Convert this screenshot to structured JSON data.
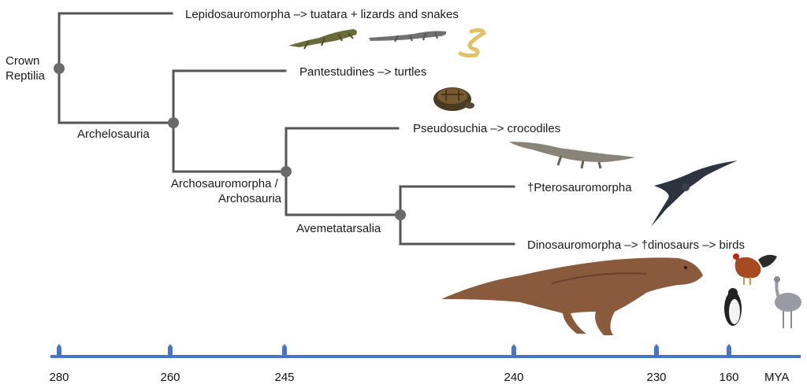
{
  "colors": {
    "branch": "#555555",
    "node": "#6a6a6a",
    "axis": "#4a74c4",
    "text": "#1a1a1a"
  },
  "nodes": {
    "crown_reptilia": "Crown\nReptilia",
    "archelosauria": "Archelosauria",
    "archosauromorpha": "Archosauromorpha /\nArchosauria",
    "avemetatarsalia": "Avemetatarsalia"
  },
  "tips": {
    "lepidosauromorpha": "Lepidosauromorpha –> tuatara + lizards and snakes",
    "pantestudines": "Pantestudines –> turtles",
    "pseudosuchia": "Pseudosuchia –> crocodiles",
    "pterosauromorpha": "†Pterosauromorpha",
    "dinosauromorpha": "Dinosauromorpha –> †dinosaurs –> birds"
  },
  "timeline": {
    "ticks": [
      "280",
      "260",
      "245",
      "240",
      "230",
      "160"
    ],
    "unit": "MYA"
  },
  "images": {
    "lepidosaur_group": [
      "tuatara-illustration",
      "lizard-illustration",
      "snake-illustration"
    ],
    "turtle": "turtle-illustration",
    "crocodile": "crocodile-illustration",
    "pterosaur": "pterosaur-illustration",
    "dinosaur": "tyrannosaur-illustration",
    "birds": [
      "rooster-illustration",
      "penguin-illustration",
      "rhea-illustration"
    ]
  }
}
